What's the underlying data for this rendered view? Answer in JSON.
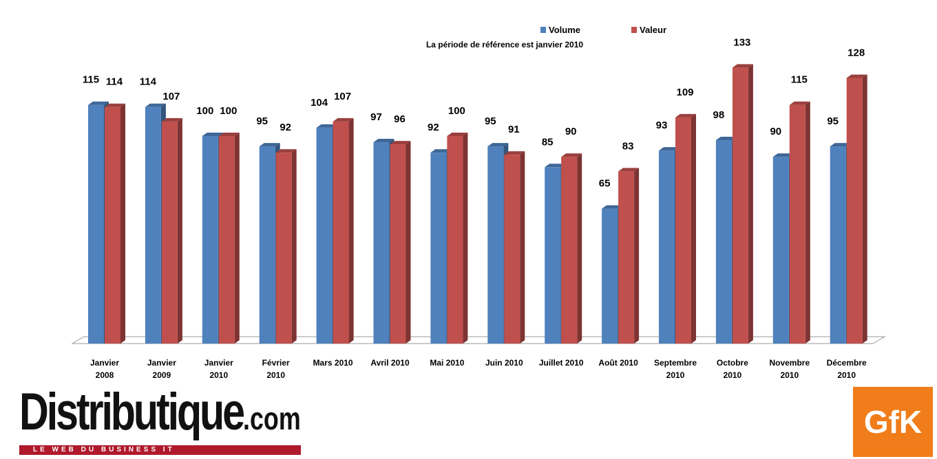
{
  "chart_data": {
    "type": "bar3d",
    "subtitle": "La période de référence est janvier 2010",
    "categories": [
      "Janvier\n2008",
      "Janvier\n2009",
      "Janvier\n2010",
      "Février\n2010",
      "Mars 2010",
      "Avril 2010",
      "Mai 2010",
      "Juin 2010",
      "Juillet 2010",
      "Août 2010",
      "Septembre\n2010",
      "Octobre\n2010",
      "Novembre\n2010",
      "Décembre\n2010"
    ],
    "series": [
      {
        "name": "Volume",
        "color": "#4f81bd",
        "values": [
          115,
          114,
          100,
          95,
          104,
          97,
          92,
          95,
          85,
          65,
          93,
          98,
          90,
          95
        ]
      },
      {
        "name": "Valeur",
        "color": "#c0504d",
        "values": [
          114,
          107,
          100,
          92,
          107,
          96,
          100,
          91,
          90,
          83,
          109,
          133,
          115,
          128
        ]
      }
    ],
    "legend": "top"
  },
  "footer": {
    "brand": "Distributique",
    "brand_suffix": ".com",
    "tagline": "LE WEB DU BUSINESS IT",
    "partner": "GfK"
  }
}
